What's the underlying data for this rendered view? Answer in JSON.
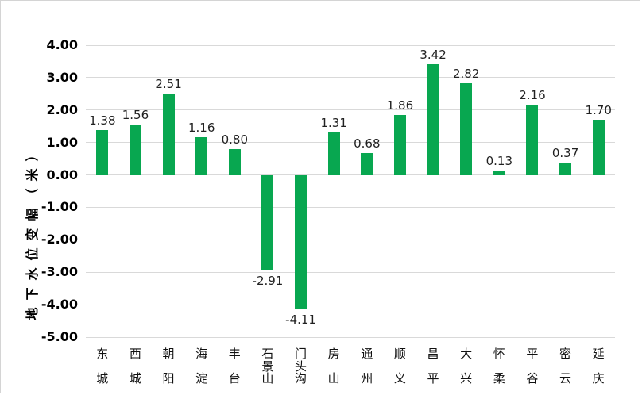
{
  "chart_data": {
    "type": "bar",
    "title": "",
    "xlabel": "",
    "ylabel": "地下水位变幅（米）",
    "categories": [
      "东城",
      "西城",
      "朝阳",
      "海淀",
      "丰台",
      "石景山",
      "门头沟",
      "房山",
      "通州",
      "顺义",
      "昌平",
      "大兴",
      "怀柔",
      "平谷",
      "密云",
      "延庆"
    ],
    "values": [
      1.38,
      1.56,
      2.51,
      1.16,
      0.8,
      -2.91,
      -4.11,
      1.31,
      0.68,
      1.86,
      3.42,
      2.82,
      0.13,
      2.16,
      0.37,
      1.7
    ],
    "value_labels": [
      "1.38",
      "1.56",
      "2.51",
      "1.16",
      "0.80",
      "-2.91",
      "-4.11",
      "1.31",
      "0.68",
      "1.86",
      "3.42",
      "2.82",
      "0.13",
      "2.16",
      "0.37",
      "1.70"
    ],
    "y_ticks": [
      "4.00",
      "3.00",
      "2.00",
      "1.00",
      "0.00",
      "-1.00",
      "-2.00",
      "-3.00",
      "-4.00",
      "-5.00"
    ],
    "ylim": [
      -5,
      4
    ],
    "grid": true,
    "legend": "none",
    "bar_color": "#08a750",
    "gridline_color": "#d9d9d9",
    "background_color": "#ffffff"
  }
}
